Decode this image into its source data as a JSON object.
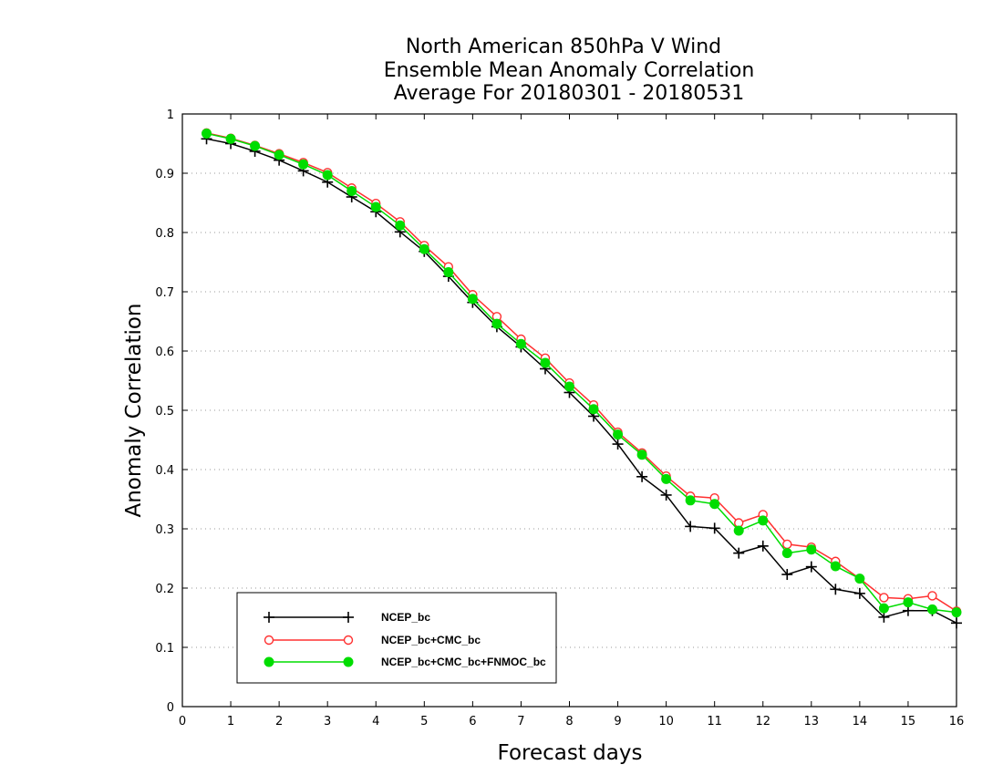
{
  "chart_data": {
    "type": "line",
    "title": [
      "North American 850hPa V Wind",
      "Ensemble Mean Anomaly Correlation",
      "Average For 20180301 - 20180531"
    ],
    "xlabel": "Forecast days",
    "ylabel": "Anomaly Correlation",
    "xlim": [
      0,
      16
    ],
    "ylim": [
      0,
      1
    ],
    "xticks": [
      0,
      1,
      2,
      3,
      4,
      5,
      6,
      7,
      8,
      9,
      10,
      11,
      12,
      13,
      14,
      15,
      16
    ],
    "yticks": [
      0,
      0.1,
      0.2,
      0.3,
      0.4,
      0.5,
      0.6,
      0.7,
      0.8,
      0.9,
      1
    ],
    "ytick_labels": [
      "0",
      "0.1",
      "0.2",
      "0.3",
      "0.4",
      "0.5",
      "0.6",
      "0.7",
      "0.8",
      "0.9",
      "1"
    ],
    "grid": "horizontal dotted",
    "legend_position": "bottom-left",
    "x": [
      0.5,
      1,
      1.5,
      2,
      2.5,
      3,
      3.5,
      4,
      4.5,
      5,
      5.5,
      6,
      6.5,
      7,
      7.5,
      8,
      8.5,
      9,
      9.5,
      10,
      10.5,
      11,
      11.5,
      12,
      12.5,
      13,
      13.5,
      14,
      14.5,
      15,
      15.5,
      16
    ],
    "series": [
      {
        "name": "NCEP_bc",
        "color": "#000000",
        "marker": "plus",
        "values": [
          0.958,
          0.95,
          0.937,
          0.922,
          0.904,
          0.885,
          0.86,
          0.835,
          0.801,
          0.768,
          0.726,
          0.682,
          0.641,
          0.607,
          0.57,
          0.53,
          0.49,
          0.443,
          0.388,
          0.357,
          0.304,
          0.301,
          0.259,
          0.271,
          0.223,
          0.236,
          0.198,
          0.191,
          0.151,
          0.162,
          0.162,
          0.141
        ]
      },
      {
        "name": "NCEP_bc+CMC_bc",
        "color": "#ff3030",
        "marker": "open-circle",
        "values": [
          0.968,
          0.959,
          0.947,
          0.933,
          0.918,
          0.901,
          0.875,
          0.849,
          0.818,
          0.778,
          0.742,
          0.695,
          0.658,
          0.62,
          0.588,
          0.546,
          0.509,
          0.463,
          0.428,
          0.389,
          0.355,
          0.352,
          0.31,
          0.324,
          0.274,
          0.269,
          0.245,
          0.216,
          0.184,
          0.182,
          0.187,
          0.161
        ]
      },
      {
        "name": "NCEP_bc+CMC_bc+FNMOC_bc",
        "color": "#00dd00",
        "marker": "filled-circle",
        "values": [
          0.967,
          0.958,
          0.946,
          0.931,
          0.915,
          0.897,
          0.87,
          0.843,
          0.812,
          0.772,
          0.733,
          0.688,
          0.646,
          0.612,
          0.58,
          0.54,
          0.502,
          0.459,
          0.425,
          0.384,
          0.348,
          0.342,
          0.297,
          0.314,
          0.259,
          0.265,
          0.237,
          0.216,
          0.166,
          0.176,
          0.164,
          0.159
        ]
      }
    ]
  }
}
